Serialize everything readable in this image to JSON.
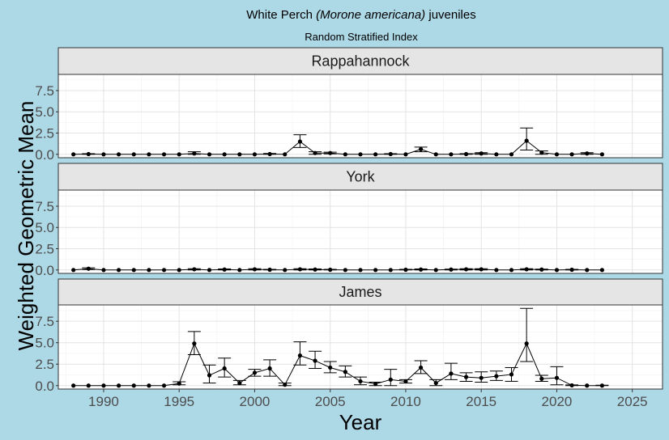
{
  "chart_data": {
    "type": "line",
    "title_prefix": "White Perch ",
    "title_italic": "(Morone americana)",
    "title_suffix": " juveniles",
    "subtitle": "Random Stratified Index",
    "xlabel": "Year",
    "ylabel": "Weighted Geometric Mean",
    "xlim": [
      1987,
      2027
    ],
    "x_ticks": [
      1990,
      1995,
      2000,
      2005,
      2010,
      2015,
      2020,
      2025
    ],
    "x_tick_labels": [
      "1990",
      "1995",
      "2000",
      "2005",
      "2010",
      "2015",
      "2020",
      "2025"
    ],
    "ylim": [
      -0.4,
      9.4
    ],
    "y_ticks": [
      0,
      2.5,
      5,
      7.5
    ],
    "y_tick_labels": [
      "0.0",
      "2.5",
      "5.0",
      "7.5"
    ],
    "grid": true,
    "panels": [
      {
        "name": "Rappahannock",
        "points": [
          [
            1988,
            0.0,
            0.0,
            0.0
          ],
          [
            1989,
            0.03,
            0.0,
            0.08
          ],
          [
            1990,
            0.0,
            0.0,
            0.0
          ],
          [
            1991,
            0.0,
            0.0,
            0.0
          ],
          [
            1992,
            0.0,
            0.0,
            0.0
          ],
          [
            1993,
            0.0,
            0.0,
            0.0
          ],
          [
            1994,
            0.0,
            0.0,
            0.0
          ],
          [
            1995,
            0.0,
            0.0,
            0.0
          ],
          [
            1996,
            0.1,
            0.0,
            0.3
          ],
          [
            1997,
            0.0,
            0.0,
            0.0
          ],
          [
            1998,
            0.0,
            0.0,
            0.0
          ],
          [
            1999,
            0.0,
            0.0,
            0.0
          ],
          [
            2000,
            0.0,
            0.0,
            0.0
          ],
          [
            2001,
            0.03,
            0.0,
            0.1
          ],
          [
            2002,
            0.0,
            0.0,
            0.0
          ],
          [
            2003,
            1.5,
            0.8,
            2.3
          ],
          [
            2004,
            0.15,
            0.0,
            0.3
          ],
          [
            2005,
            0.15,
            0.05,
            0.25
          ],
          [
            2006,
            0.0,
            0.0,
            0.0
          ],
          [
            2007,
            0.0,
            0.0,
            0.0
          ],
          [
            2008,
            0.0,
            0.0,
            0.0
          ],
          [
            2009,
            0.03,
            0.0,
            0.08
          ],
          [
            2010,
            0.0,
            0.0,
            0.0
          ],
          [
            2011,
            0.6,
            0.3,
            0.85
          ],
          [
            2012,
            0.0,
            0.0,
            0.0
          ],
          [
            2013,
            0.0,
            0.0,
            0.0
          ],
          [
            2014,
            0.03,
            0.0,
            0.08
          ],
          [
            2015,
            0.1,
            0.0,
            0.2
          ],
          [
            2016,
            0.0,
            0.0,
            0.0
          ],
          [
            2017,
            0.0,
            0.0,
            0.0
          ],
          [
            2018,
            1.6,
            0.5,
            3.1
          ],
          [
            2019,
            0.2,
            0.0,
            0.4
          ],
          [
            2020,
            0.0,
            0.0,
            0.0
          ],
          [
            2021,
            0.0,
            0.0,
            0.0
          ],
          [
            2022,
            0.1,
            0.0,
            0.2
          ],
          [
            2023,
            0.0,
            0.0,
            0.0
          ]
        ]
      },
      {
        "name": "York",
        "points": [
          [
            1988,
            0.0,
            0.0,
            0.0
          ],
          [
            1989,
            0.15,
            0.05,
            0.25
          ],
          [
            1990,
            0.0,
            0.0,
            0.0
          ],
          [
            1991,
            0.0,
            0.0,
            0.0
          ],
          [
            1992,
            0.0,
            0.0,
            0.0
          ],
          [
            1993,
            0.0,
            0.0,
            0.0
          ],
          [
            1994,
            0.0,
            0.0,
            0.0
          ],
          [
            1995,
            0.0,
            0.0,
            0.0
          ],
          [
            1996,
            0.08,
            0.0,
            0.15
          ],
          [
            1997,
            0.0,
            0.0,
            0.0
          ],
          [
            1998,
            0.05,
            0.0,
            0.12
          ],
          [
            1999,
            0.0,
            0.0,
            0.0
          ],
          [
            2000,
            0.08,
            0.0,
            0.15
          ],
          [
            2001,
            0.03,
            0.0,
            0.08
          ],
          [
            2002,
            0.0,
            0.0,
            0.0
          ],
          [
            2003,
            0.08,
            0.0,
            0.15
          ],
          [
            2004,
            0.05,
            0.0,
            0.12
          ],
          [
            2005,
            0.03,
            0.0,
            0.08
          ],
          [
            2006,
            0.0,
            0.0,
            0.0
          ],
          [
            2007,
            0.0,
            0.0,
            0.0
          ],
          [
            2008,
            0.0,
            0.0,
            0.0
          ],
          [
            2009,
            0.0,
            0.0,
            0.0
          ],
          [
            2010,
            0.03,
            0.0,
            0.08
          ],
          [
            2011,
            0.05,
            0.0,
            0.12
          ],
          [
            2012,
            0.0,
            0.0,
            0.0
          ],
          [
            2013,
            0.05,
            0.0,
            0.1
          ],
          [
            2014,
            0.08,
            0.0,
            0.15
          ],
          [
            2015,
            0.08,
            0.0,
            0.15
          ],
          [
            2016,
            0.0,
            0.0,
            0.0
          ],
          [
            2017,
            0.0,
            0.0,
            0.0
          ],
          [
            2018,
            0.08,
            0.0,
            0.15
          ],
          [
            2019,
            0.05,
            0.0,
            0.1
          ],
          [
            2020,
            0.0,
            0.0,
            0.0
          ],
          [
            2021,
            0.03,
            0.0,
            0.08
          ],
          [
            2022,
            0.0,
            0.0,
            0.0
          ],
          [
            2023,
            0.0,
            0.0,
            0.0
          ]
        ]
      },
      {
        "name": "James",
        "points": [
          [
            1988,
            0.0,
            0.0,
            0.0
          ],
          [
            1989,
            0.0,
            0.0,
            0.0
          ],
          [
            1990,
            0.0,
            0.0,
            0.0
          ],
          [
            1991,
            0.0,
            0.0,
            0.0
          ],
          [
            1992,
            0.0,
            0.0,
            0.0
          ],
          [
            1993,
            0.0,
            0.0,
            0.0
          ],
          [
            1994,
            0.0,
            0.0,
            0.0
          ],
          [
            1995,
            0.25,
            0.1,
            0.45
          ],
          [
            1996,
            4.9,
            3.6,
            6.3
          ],
          [
            1997,
            1.2,
            0.3,
            2.4
          ],
          [
            1998,
            2.0,
            1.0,
            3.2
          ],
          [
            1999,
            0.3,
            0.1,
            0.6
          ],
          [
            2000,
            1.5,
            1.1,
            1.9
          ],
          [
            2001,
            2.0,
            1.1,
            3.0
          ],
          [
            2002,
            0.1,
            0.0,
            0.3
          ],
          [
            2003,
            3.5,
            2.4,
            5.1
          ],
          [
            2004,
            2.9,
            2.0,
            4.0
          ],
          [
            2005,
            2.1,
            1.5,
            2.8
          ],
          [
            2006,
            1.6,
            1.0,
            2.3
          ],
          [
            2007,
            0.5,
            0.1,
            1.0
          ],
          [
            2008,
            0.2,
            0.0,
            0.4
          ],
          [
            2009,
            0.7,
            0.0,
            1.9
          ],
          [
            2010,
            0.5,
            0.3,
            0.7
          ],
          [
            2011,
            2.1,
            1.4,
            2.9
          ],
          [
            2012,
            0.3,
            0.0,
            0.7
          ],
          [
            2013,
            1.4,
            0.7,
            2.6
          ],
          [
            2014,
            1.0,
            0.5,
            1.5
          ],
          [
            2015,
            0.9,
            0.4,
            1.6
          ],
          [
            2016,
            1.1,
            0.6,
            1.7
          ],
          [
            2017,
            1.3,
            0.5,
            2.1
          ],
          [
            2018,
            4.9,
            2.8,
            9.0
          ],
          [
            2019,
            0.8,
            0.5,
            1.2
          ],
          [
            2020,
            0.9,
            0.1,
            2.2
          ],
          [
            2021,
            0.03,
            0.0,
            0.08
          ],
          [
            2022,
            0.0,
            0.0,
            0.0
          ],
          [
            2023,
            0.0,
            0.0,
            0.05
          ]
        ]
      }
    ]
  }
}
